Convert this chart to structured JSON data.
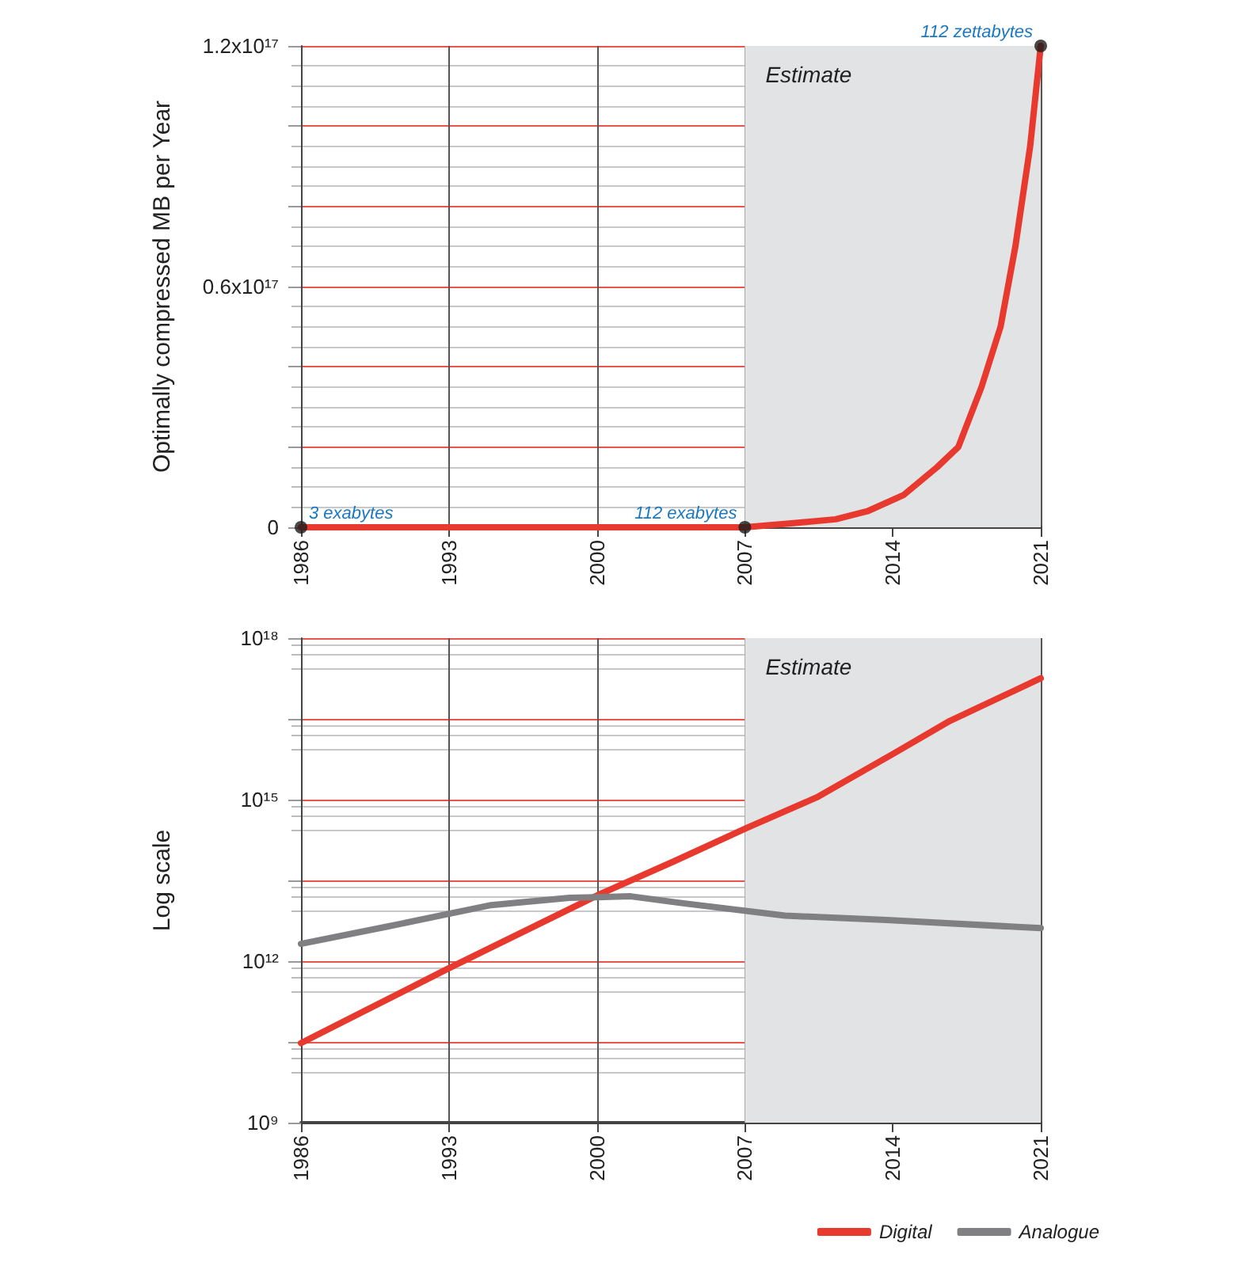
{
  "chart_data": [
    {
      "type": "line",
      "ylabel": "Optimally compressed MB per Year",
      "xlim": [
        1986,
        2021
      ],
      "xticks": [
        1986,
        1993,
        2000,
        2007,
        2014,
        2021
      ],
      "ylim": [
        0,
        1.2e+17
      ],
      "yticks": [
        0,
        {
          "value": 2e+16,
          "label": null
        },
        {
          "value": 4e+16,
          "label": null
        },
        {
          "value": 6e+16,
          "label": "0.6x10¹⁷"
        },
        {
          "value": 8e+16,
          "label": null
        },
        {
          "value": 1e+17,
          "label": null
        },
        {
          "value": 1.2e+17,
          "label": "1.2x10¹⁷"
        }
      ],
      "grid": true,
      "marker": "none",
      "line_style": "solid",
      "legend": false,
      "bands": [
        {
          "axis": "x",
          "from": 2007,
          "to": 2021,
          "label": "Estimate",
          "color": "#e2e3e5"
        }
      ],
      "series": [
        {
          "color": "#e8392f",
          "x": [
            1986,
            2007,
            2009.2,
            2011.3,
            2012.8,
            2014.5,
            2016.1,
            2017.1,
            2018.2,
            2019.1,
            2019.8,
            2020.5,
            2021
          ],
          "values": [
            0,
            0,
            1000000000000000.0,
            2000000000000000.0,
            4000000000000000.0,
            8000000000000000.0,
            1.5e+16,
            2e+16,
            3.5e+16,
            5e+16,
            7e+16,
            9.5e+16,
            1.2e+17
          ]
        },
        {
          "type": "scatter",
          "marker": "circle",
          "color": "#1a1a1a",
          "x": [
            1986,
            2007,
            2021
          ],
          "values": [
            0,
            0,
            1.2e+17
          ]
        }
      ],
      "annotations": [
        {
          "text": "3 exabytes",
          "x": 1986,
          "y": 0
        },
        {
          "text": "112 exabytes",
          "x": 2007,
          "y": 0
        },
        {
          "text": "112 zettabytes",
          "x": 2021,
          "y": 1.2e+17
        }
      ]
    },
    {
      "type": "line",
      "ylabel": "Log scale",
      "log": "y",
      "xlim": [
        1986,
        2021
      ],
      "xticks": [
        1986,
        1993,
        2000,
        2007,
        2014,
        2021
      ],
      "ylim": [
        1000000000.0,
        1e+18
      ],
      "yticks": [
        {
          "value": 1000000000.0,
          "label": "10⁹"
        },
        {
          "value": 31623000000.0,
          "label": null
        },
        {
          "value": 1000000000000.0,
          "label": "10¹²"
        },
        {
          "value": 31623000000000.0,
          "label": null
        },
        {
          "value": 1000000000000000.0,
          "label": "10¹⁵"
        },
        {
          "value": 3.1623e+16,
          "label": null
        },
        {
          "value": 1e+18,
          "label": "10¹⁸"
        }
      ],
      "grid": true,
      "marker": "none",
      "line_style": "solid",
      "legend": "bottom right",
      "bands": [
        {
          "axis": "x",
          "from": 2007,
          "to": 2021,
          "label": "Estimate",
          "color": "#e2e3e5"
        }
      ],
      "series": [
        {
          "name": "Digital",
          "color": "#e8392f",
          "x": [
            1986,
            1993,
            2000.2,
            2003.6,
            2007.1,
            2010.4,
            2014.1,
            2016.7,
            2021
          ],
          "values": [
            30000000000.0,
            740000000000.0,
            18000000000000.0,
            70000000000000.0,
            300000000000000.0,
            1100000000000000.0,
            7400000000000000.0,
            2.9e+16,
            1.8e+17
          ]
        },
        {
          "name": "Analogue",
          "color": "#808083",
          "x": [
            1986,
            1990.1,
            1995,
            1998.7,
            2001.6,
            2004,
            2008.9,
            2013.7,
            2021
          ],
          "values": [
            2100000000000.0,
            4400000000000.0,
            11000000000000.0,
            15000000000000.0,
            16000000000000.0,
            12000000000000.0,
            7000000000000.0,
            5800000000000.0,
            4100000000000.0
          ]
        }
      ]
    }
  ]
}
